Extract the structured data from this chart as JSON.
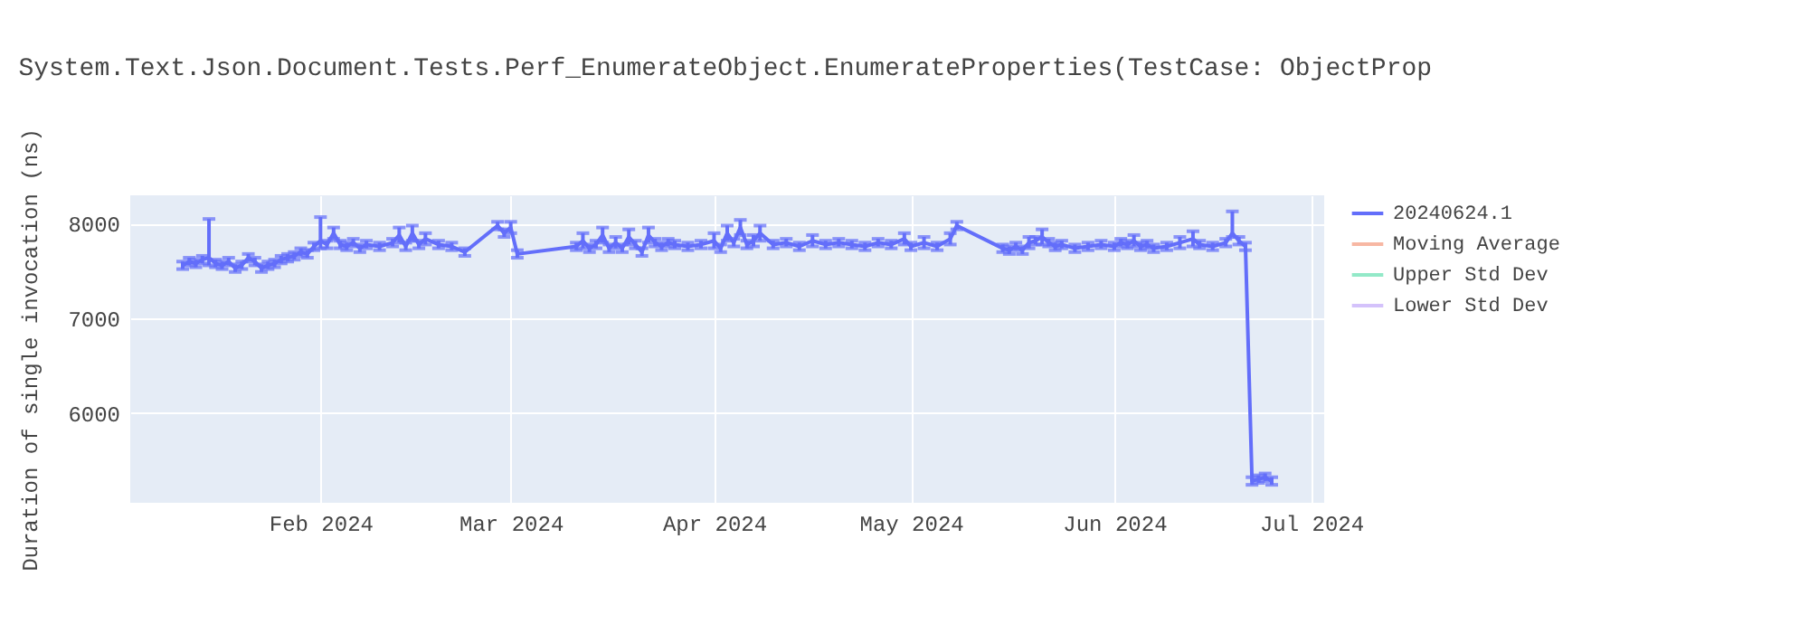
{
  "chart_data": {
    "type": "line",
    "title": "System.Text.Json.Document.Tests.Perf_EnumerateObject.EnumerateProperties(TestCase: ObjectProp",
    "ylabel": "Duration of single invocation (ns)",
    "x": [
      "2024-01-11",
      "2024-01-12",
      "2024-01-13",
      "2024-01-14",
      "2024-01-15",
      "2024-01-16",
      "2024-01-17",
      "2024-01-18",
      "2024-01-19",
      "2024-01-20",
      "2024-01-21",
      "2024-01-22",
      "2024-01-23",
      "2024-01-24",
      "2024-01-25",
      "2024-01-26",
      "2024-01-27",
      "2024-01-28",
      "2024-01-29",
      "2024-01-30",
      "2024-01-31",
      "2024-02-01",
      "2024-02-02",
      "2024-02-03",
      "2024-02-04",
      "2024-02-05",
      "2024-02-06",
      "2024-02-07",
      "2024-02-08",
      "2024-02-10",
      "2024-02-12",
      "2024-02-13",
      "2024-02-14",
      "2024-02-15",
      "2024-02-16",
      "2024-02-17",
      "2024-02-19",
      "2024-02-21",
      "2024-02-23",
      "2024-02-28",
      "2024-02-29",
      "2024-03-01",
      "2024-03-02",
      "2024-03-11",
      "2024-03-12",
      "2024-03-13",
      "2024-03-14",
      "2024-03-15",
      "2024-03-16",
      "2024-03-17",
      "2024-03-18",
      "2024-03-19",
      "2024-03-20",
      "2024-03-21",
      "2024-03-22",
      "2024-03-23",
      "2024-03-24",
      "2024-03-25",
      "2024-03-26",
      "2024-03-28",
      "2024-03-30",
      "2024-04-01",
      "2024-04-02",
      "2024-04-03",
      "2024-04-04",
      "2024-04-05",
      "2024-04-06",
      "2024-04-07",
      "2024-04-08",
      "2024-04-10",
      "2024-04-12",
      "2024-04-14",
      "2024-04-16",
      "2024-04-18",
      "2024-04-20",
      "2024-04-22",
      "2024-04-24",
      "2024-04-26",
      "2024-04-28",
      "2024-04-30",
      "2024-05-01",
      "2024-05-03",
      "2024-05-05",
      "2024-05-07",
      "2024-05-08",
      "2024-05-15",
      "2024-05-16",
      "2024-05-17",
      "2024-05-18",
      "2024-05-19",
      "2024-05-20",
      "2024-05-21",
      "2024-05-22",
      "2024-05-23",
      "2024-05-24",
      "2024-05-26",
      "2024-05-28",
      "2024-05-30",
      "2024-06-01",
      "2024-06-02",
      "2024-06-03",
      "2024-06-04",
      "2024-06-05",
      "2024-06-06",
      "2024-06-07",
      "2024-06-09",
      "2024-06-11",
      "2024-06-13",
      "2024-06-14",
      "2024-06-16",
      "2024-06-18",
      "2024-06-19",
      "2024-06-20",
      "2024-06-21",
      "2024-06-22",
      "2024-06-23",
      "2024-06-24",
      "2024-06-25"
    ],
    "series": [
      {
        "name": "20240624.1",
        "color": "#636efa",
        "values": [
          7560,
          7600,
          7580,
          7620,
          7640,
          7580,
          7560,
          7600,
          7530,
          7560,
          7640,
          7600,
          7530,
          7560,
          7580,
          7620,
          7640,
          7660,
          7700,
          7680,
          7760,
          7820,
          7780,
          7900,
          7780,
          7760,
          7800,
          7740,
          7780,
          7760,
          7800,
          7880,
          7760,
          7900,
          7780,
          7840,
          7780,
          7760,
          7700,
          7980,
          7900,
          7960,
          7680,
          7760,
          7820,
          7740,
          7780,
          7880,
          7740,
          7800,
          7740,
          7860,
          7780,
          7700,
          7880,
          7800,
          7760,
          7800,
          7780,
          7760,
          7780,
          7820,
          7740,
          7900,
          7800,
          7960,
          7780,
          7820,
          7900,
          7780,
          7800,
          7760,
          7820,
          7780,
          7800,
          7780,
          7760,
          7800,
          7780,
          7840,
          7760,
          7800,
          7760,
          7840,
          7980,
          7740,
          7720,
          7760,
          7720,
          7800,
          7820,
          7860,
          7800,
          7760,
          7780,
          7740,
          7760,
          7780,
          7760,
          7800,
          7780,
          7820,
          7760,
          7780,
          7740,
          7760,
          7800,
          7840,
          7780,
          7760,
          7800,
          7900,
          7820,
          7760,
          5280,
          5300,
          5320,
          5280
        ],
        "errors": [
          40,
          40,
          40,
          40,
          [
            7560,
            8050
          ],
          40,
          40,
          40,
          40,
          40,
          40,
          40,
          40,
          40,
          40,
          40,
          40,
          40,
          40,
          40,
          40,
          [
            7740,
            8070
          ],
          40,
          60,
          40,
          40,
          40,
          40,
          40,
          40,
          40,
          80,
          40,
          80,
          40,
          60,
          40,
          40,
          40,
          40,
          40,
          60,
          40,
          40,
          80,
          40,
          40,
          80,
          40,
          60,
          40,
          80,
          40,
          40,
          80,
          40,
          40,
          40,
          40,
          40,
          40,
          80,
          40,
          80,
          40,
          80,
          40,
          60,
          80,
          40,
          40,
          40,
          60,
          40,
          40,
          40,
          40,
          40,
          40,
          60,
          40,
          60,
          40,
          60,
          40,
          40,
          40,
          40,
          40,
          60,
          40,
          80,
          40,
          40,
          40,
          40,
          40,
          40,
          40,
          40,
          40,
          60,
          40,
          40,
          40,
          40,
          60,
          80,
          40,
          40,
          40,
          [
            7860,
            8130
          ],
          40,
          40,
          40,
          40,
          40,
          40
        ]
      },
      {
        "name": "Moving Average",
        "color": "#f7b7a3",
        "values": [
          null,
          null,
          null,
          null,
          null,
          null,
          null,
          null,
          null,
          null,
          null,
          null,
          null,
          null,
          null,
          null,
          null,
          null,
          null,
          null,
          null,
          null,
          null,
          null,
          null,
          null,
          null,
          null,
          null,
          null,
          null,
          null,
          null,
          null,
          null,
          null,
          null,
          null,
          null,
          null,
          null,
          null,
          null,
          null,
          null,
          null,
          null,
          null,
          null,
          null,
          null,
          null,
          null,
          null,
          null,
          null,
          null,
          null,
          null,
          null,
          null,
          null,
          null,
          null,
          null,
          null,
          null,
          null,
          null,
          null,
          null,
          null,
          null,
          null,
          null,
          null,
          null,
          null,
          null,
          null,
          null,
          null,
          null,
          null,
          null,
          null,
          null,
          null,
          null,
          null,
          null,
          null,
          null,
          null,
          null,
          null,
          null,
          null,
          null,
          null,
          null,
          null,
          null,
          null,
          null,
          null,
          null,
          null,
          null,
          null,
          null,
          null,
          null,
          null,
          null,
          null,
          null,
          null
        ]
      },
      {
        "name": "Upper Std Dev",
        "color": "#93e9c8",
        "values": [
          null,
          null,
          null,
          null,
          null,
          null,
          null,
          null,
          null,
          null,
          null,
          null,
          null,
          null,
          null,
          null,
          null,
          null,
          null,
          null,
          null,
          null,
          null,
          null,
          null,
          null,
          null,
          null,
          null,
          null,
          null,
          null,
          null,
          null,
          null,
          null,
          null,
          null,
          null,
          null,
          null,
          null,
          null,
          null,
          null,
          null,
          null,
          null,
          null,
          null,
          null,
          null,
          null,
          null,
          null,
          null,
          null,
          null,
          null,
          null,
          null,
          null,
          null,
          null,
          null,
          null,
          null,
          null,
          null,
          null,
          null,
          null,
          null,
          null,
          null,
          null,
          null,
          null,
          null,
          null,
          null,
          null,
          null,
          null,
          null,
          null,
          null,
          null,
          null,
          null,
          null,
          null,
          null,
          null,
          null,
          null,
          null,
          null,
          null,
          null,
          null,
          null,
          null,
          null,
          null,
          null,
          null,
          null,
          null,
          null,
          null,
          null,
          null,
          null,
          null,
          null,
          null,
          null
        ]
      },
      {
        "name": "Lower Std Dev",
        "color": "#d4c2fb",
        "values": [
          null,
          null,
          null,
          null,
          null,
          null,
          null,
          null,
          null,
          null,
          null,
          null,
          null,
          null,
          null,
          null,
          null,
          null,
          null,
          null,
          null,
          null,
          null,
          null,
          null,
          null,
          null,
          null,
          null,
          null,
          null,
          null,
          null,
          null,
          null,
          null,
          null,
          null,
          null,
          null,
          null,
          null,
          null,
          null,
          null,
          null,
          null,
          null,
          null,
          null,
          null,
          null,
          null,
          null,
          null,
          null,
          null,
          null,
          null,
          null,
          null,
          null,
          null,
          null,
          null,
          null,
          null,
          null,
          null,
          null,
          null,
          null,
          null,
          null,
          null,
          null,
          null,
          null,
          null,
          null,
          null,
          null,
          null,
          null,
          null,
          null,
          null,
          null,
          null,
          null,
          null,
          null,
          null,
          null,
          null,
          null,
          null,
          null,
          null,
          null,
          null,
          null,
          null,
          null,
          null,
          null,
          null,
          null,
          null,
          null,
          null,
          null,
          null,
          null,
          null,
          null,
          null,
          null
        ]
      }
    ],
    "xlim": [
      "2024-01-03",
      "2024-07-03"
    ],
    "xticks": [
      {
        "value": "2024-02-01",
        "label": "Feb 2024"
      },
      {
        "value": "2024-03-01",
        "label": "Mar 2024"
      },
      {
        "value": "2024-04-01",
        "label": "Apr 2024"
      },
      {
        "value": "2024-05-01",
        "label": "May 2024"
      },
      {
        "value": "2024-06-01",
        "label": "Jun 2024"
      },
      {
        "value": "2024-07-01",
        "label": "Jul 2024"
      }
    ],
    "ylim": [
      5050,
      8300
    ],
    "yticks": [
      6000,
      7000,
      8000
    ],
    "grid": true,
    "legend": "right",
    "marker": "none",
    "line_style": "solid"
  }
}
